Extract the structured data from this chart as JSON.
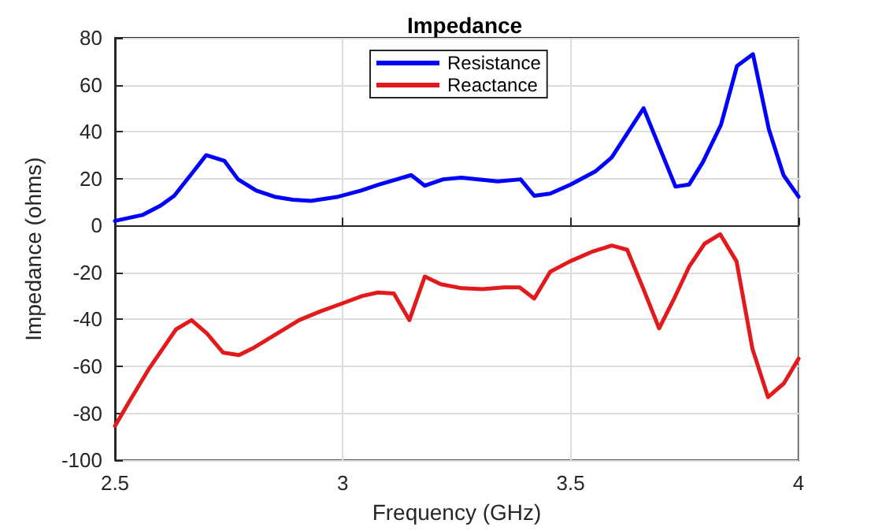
{
  "chart_data": {
    "type": "line",
    "title": "Impedance",
    "xlabel": "Frequency (GHz)",
    "ylabel": "Impedance (ohms)",
    "xlim": [
      2.5,
      4
    ],
    "xticks": [
      2.5,
      3,
      3.5,
      4
    ],
    "ylim": [
      -100,
      80
    ],
    "yticks": [
      -100,
      -80,
      -60,
      -40,
      -20,
      0,
      20,
      40,
      60,
      80
    ],
    "grid": true,
    "legend": "top",
    "line_style": "solid",
    "marker": "none",
    "series": [
      {
        "name": "Resistance",
        "color": "#0000ff",
        "x": [
          2.5,
          2.56,
          2.6,
          2.63,
          2.67,
          2.7,
          2.74,
          2.77,
          2.81,
          2.85,
          2.89,
          2.93,
          2.99,
          3.04,
          3.08,
          3.15,
          3.18,
          3.22,
          3.26,
          3.34,
          3.39,
          3.42,
          3.455,
          3.5,
          3.555,
          3.59,
          3.66,
          3.73,
          3.76,
          3.79,
          3.83,
          3.865,
          3.9,
          3.935,
          3.967,
          4
        ],
        "values": [
          2,
          4.5,
          8.5,
          12.7,
          22.5,
          30,
          27.6,
          19.7,
          14.9,
          12.3,
          11,
          10.5,
          12.3,
          14.9,
          17.5,
          21.5,
          17,
          19.7,
          20.4,
          18.8,
          19.7,
          12.7,
          13.6,
          17.5,
          23.2,
          29,
          50,
          16.6,
          17.5,
          27,
          43,
          68,
          73,
          41,
          21.5,
          12.3
        ]
      },
      {
        "name": "Reactance",
        "color": "#e31a1c",
        "x": [
          2.5,
          2.535,
          2.576,
          2.634,
          2.668,
          2.702,
          2.737,
          2.772,
          2.806,
          2.904,
          2.95,
          2.997,
          3.043,
          3.077,
          3.112,
          3.146,
          3.18,
          3.215,
          3.261,
          3.307,
          3.354,
          3.388,
          3.42,
          3.455,
          3.498,
          3.549,
          3.59,
          3.624,
          3.659,
          3.694,
          3.728,
          3.76,
          3.794,
          3.828,
          3.864,
          3.899,
          3.933,
          3.968,
          4
        ],
        "values": [
          -85.4,
          -73.8,
          -60.6,
          -44.2,
          -40.3,
          -46,
          -54.1,
          -55.2,
          -51.9,
          -40.3,
          -36.6,
          -33.3,
          -30,
          -28.5,
          -28.9,
          -40.3,
          -21.7,
          -25,
          -26.7,
          -27.1,
          -26.3,
          -26.3,
          -31.1,
          -19.7,
          -15.3,
          -11,
          -8.5,
          -10.3,
          -26.7,
          -43.8,
          -30.7,
          -17.5,
          -7.7,
          -3.7,
          -15.3,
          -52.6,
          -73.1,
          -67.2,
          -56.7
        ]
      }
    ]
  }
}
